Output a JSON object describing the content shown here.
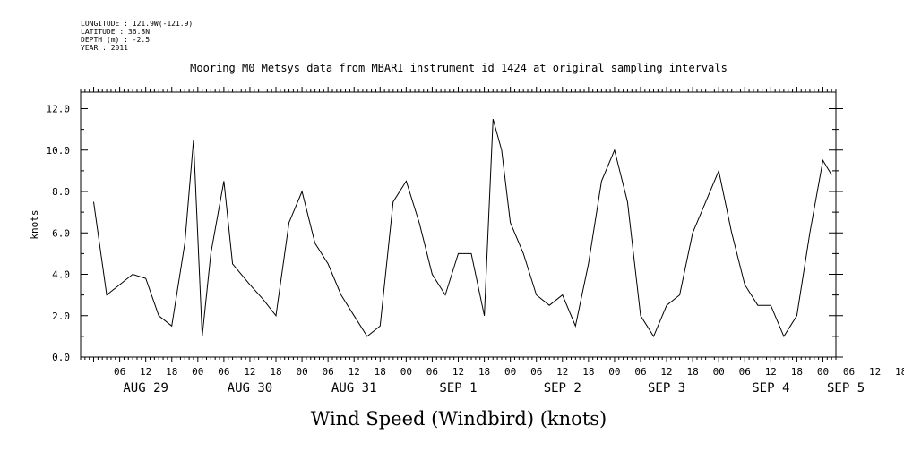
{
  "metadata": {
    "longitude": "LONGITUDE : 121.9W(-121.9)",
    "latitude": "LATITUDE : 36.8N",
    "depth": "DEPTH (m) : -2.5",
    "year": "YEAR : 2011"
  },
  "chart_data": {
    "type": "line",
    "title": "Mooring M0 Metsys data from MBARI instrument id 1424 at original sampling intervals",
    "xlabel": "Wind Speed (Windbird) (knots)",
    "ylabel": "knots",
    "ylim": [
      0,
      12.8
    ],
    "y_ticks": [
      0,
      2,
      4,
      6,
      8,
      10,
      12
    ],
    "y_tick_labels": [
      "0.0",
      "2.0",
      "4.0",
      "6.0",
      "8.0",
      "10.0",
      "12.0"
    ],
    "xlim": [
      "2011-08-28T21:00",
      "2011-09-05T03:00"
    ],
    "x_hour_ticks": [
      "06",
      "12",
      "18",
      "00",
      "06",
      "12",
      "18",
      "00",
      "06",
      "12",
      "18",
      "00",
      "06",
      "12",
      "18",
      "00",
      "06",
      "12",
      "18",
      "00",
      "06",
      "12",
      "18",
      "00",
      "06",
      "12",
      "18",
      "00",
      "06",
      "12",
      "18",
      "00"
    ],
    "x_day_labels": [
      "AUG 29",
      "AUG 30",
      "AUG 31",
      "SEP  1",
      "SEP  2",
      "SEP  3",
      "SEP  4",
      "SEP  5"
    ],
    "grid": false,
    "series": [
      {
        "color": "#000000",
        "x": [
          "2011-08-29T00:00",
          "2011-08-29T03:00",
          "2011-08-29T06:00",
          "2011-08-29T09:00",
          "2011-08-29T12:00",
          "2011-08-29T15:00",
          "2011-08-29T18:00",
          "2011-08-29T21:00",
          "2011-08-29T23:00",
          "2011-08-30T01:00",
          "2011-08-30T03:00",
          "2011-08-30T06:00",
          "2011-08-30T08:00",
          "2011-08-30T12:00",
          "2011-08-30T15:00",
          "2011-08-30T18:00",
          "2011-08-30T21:00",
          "2011-08-31T00:00",
          "2011-08-31T03:00",
          "2011-08-31T06:00",
          "2011-08-31T09:00",
          "2011-08-31T12:00",
          "2011-08-31T15:00",
          "2011-08-31T18:00",
          "2011-08-31T21:00",
          "2011-09-01T00:00",
          "2011-09-01T03:00",
          "2011-09-01T06:00",
          "2011-09-01T09:00",
          "2011-09-01T12:00",
          "2011-09-01T15:00",
          "2011-09-01T18:00",
          "2011-09-01T20:00",
          "2011-09-01T22:00",
          "2011-09-02T00:00",
          "2011-09-02T03:00",
          "2011-09-02T06:00",
          "2011-09-02T09:00",
          "2011-09-02T12:00",
          "2011-09-02T15:00",
          "2011-09-02T18:00",
          "2011-09-02T21:00",
          "2011-09-03T00:00",
          "2011-09-03T03:00",
          "2011-09-03T06:00",
          "2011-09-03T09:00",
          "2011-09-03T12:00",
          "2011-09-03T15:00",
          "2011-09-03T18:00",
          "2011-09-03T21:00",
          "2011-09-04T00:00",
          "2011-09-04T03:00",
          "2011-09-04T06:00",
          "2011-09-04T09:00",
          "2011-09-04T12:00",
          "2011-09-04T15:00",
          "2011-09-04T18:00",
          "2011-09-04T21:00",
          "2011-09-05T00:00",
          "2011-09-05T02:00"
        ],
        "values": [
          7.5,
          3.0,
          3.5,
          4.0,
          3.8,
          2.0,
          1.5,
          5.5,
          10.5,
          1.0,
          5.0,
          8.5,
          4.5,
          3.5,
          2.8,
          2.0,
          6.5,
          8.0,
          5.5,
          4.5,
          3.0,
          2.0,
          1.0,
          1.5,
          7.5,
          8.5,
          6.5,
          4.0,
          3.0,
          5.0,
          5.0,
          2.0,
          11.5,
          10.0,
          6.5,
          5.0,
          3.0,
          2.5,
          3.0,
          1.5,
          4.5,
          8.5,
          10.0,
          7.5,
          2.0,
          1.0,
          2.5,
          3.0,
          6.0,
          7.5,
          9.0,
          6.0,
          3.5,
          2.5,
          2.5,
          1.0,
          2.0,
          6.0,
          9.5,
          8.8
        ]
      }
    ]
  }
}
